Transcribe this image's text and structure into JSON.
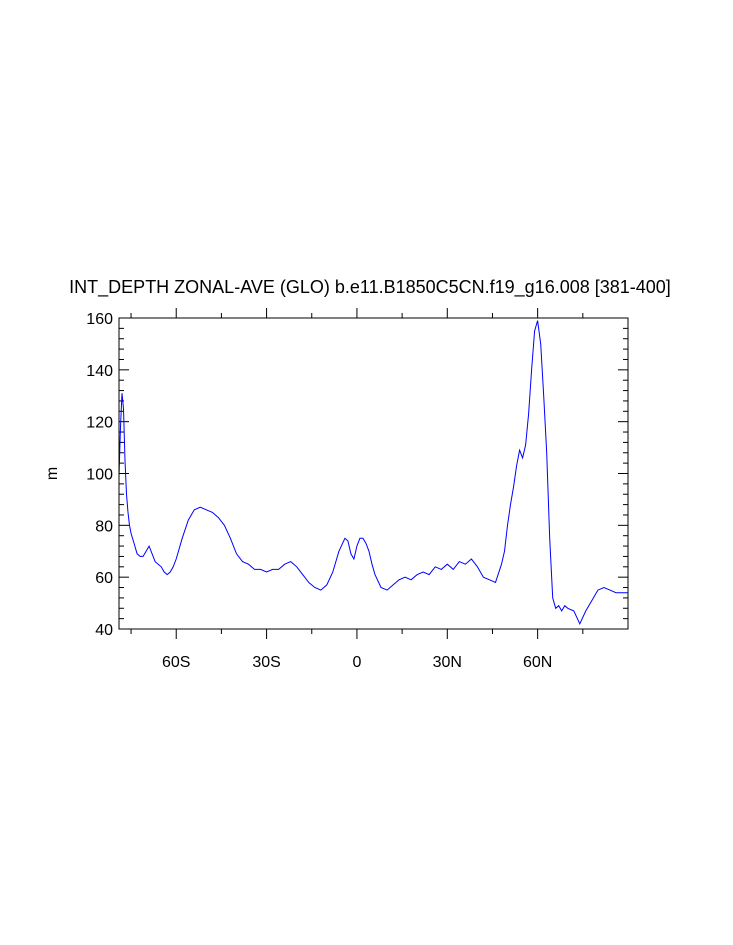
{
  "chart_data": {
    "type": "line",
    "title": "INT_DEPTH ZONAL-AVE (GLO) b.e11.B1850C5CN.f19_g16.008 [381-400]",
    "xlabel": "",
    "ylabel": "m",
    "xlim": [
      -79,
      90
    ],
    "ylim": [
      40,
      160
    ],
    "grid": false,
    "legend": "none",
    "line_color": "#0000ff",
    "x_ticks": [
      {
        "value": -60,
        "label": "60S"
      },
      {
        "value": -30,
        "label": "30S"
      },
      {
        "value": 0,
        "label": "0"
      },
      {
        "value": 30,
        "label": "30N"
      },
      {
        "value": 60,
        "label": "60N"
      }
    ],
    "y_ticks": [
      {
        "value": 40,
        "label": "40"
      },
      {
        "value": 60,
        "label": "60"
      },
      {
        "value": 80,
        "label": "80"
      },
      {
        "value": 100,
        "label": "100"
      },
      {
        "value": 120,
        "label": "120"
      },
      {
        "value": 140,
        "label": "140"
      },
      {
        "value": 160,
        "label": "160"
      }
    ],
    "series": [
      {
        "x": [
          -79,
          -78.5,
          -78,
          -77.5,
          -77,
          -76.5,
          -76,
          -75.5,
          -75,
          -74,
          -73,
          -72,
          -71,
          -70,
          -69,
          -68,
          -67,
          -66,
          -65,
          -64,
          -63,
          -62,
          -61,
          -60,
          -58,
          -56,
          -54,
          -52,
          -50,
          -48,
          -46,
          -44,
          -42,
          -40,
          -38,
          -36,
          -34,
          -32,
          -30,
          -28,
          -26,
          -24,
          -22,
          -20,
          -18,
          -16,
          -14,
          -12,
          -10,
          -8,
          -6,
          -4,
          -3,
          -2,
          -1,
          0,
          1,
          2,
          3,
          4,
          5,
          6,
          8,
          10,
          12,
          14,
          16,
          18,
          20,
          22,
          24,
          26,
          28,
          30,
          32,
          34,
          36,
          38,
          40,
          42,
          44,
          46,
          48,
          49,
          50,
          51,
          52,
          53,
          54,
          55,
          56,
          57,
          58,
          59,
          60,
          61,
          62,
          63,
          64,
          65,
          66,
          67,
          68,
          69,
          70,
          72,
          74,
          76,
          77,
          78,
          80,
          82,
          84,
          86,
          88,
          90
        ],
        "y": [
          99,
          118,
          131,
          125,
          105,
          92,
          85,
          80,
          77,
          73,
          69,
          68,
          68,
          70,
          72,
          69,
          66,
          65,
          64,
          62,
          61,
          62,
          64,
          67,
          75,
          82,
          86,
          87,
          86,
          85,
          83,
          80,
          75,
          69,
          66,
          65,
          63,
          63,
          62,
          63,
          63,
          65,
          66,
          64,
          61,
          58,
          56,
          55,
          57,
          62,
          70,
          75,
          74,
          69,
          67,
          72,
          75,
          75,
          73,
          70,
          65,
          61,
          56,
          55,
          57,
          59,
          60,
          59,
          61,
          62,
          61,
          64,
          63,
          65,
          63,
          66,
          65,
          67,
          64,
          60,
          59,
          58,
          65,
          70,
          80,
          88,
          95,
          103,
          109,
          106,
          111,
          123,
          140,
          155,
          159,
          150,
          130,
          108,
          75,
          52,
          48,
          49,
          47,
          49,
          48,
          47,
          42,
          47,
          49,
          51,
          55,
          56,
          55,
          54,
          54,
          54
        ]
      }
    ]
  }
}
